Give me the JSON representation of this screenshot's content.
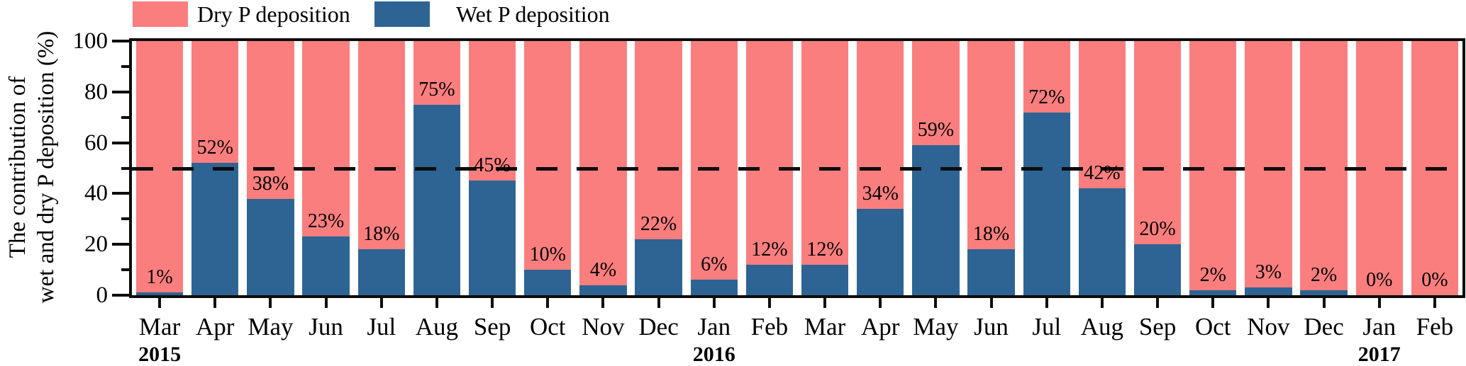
{
  "legend": [
    {
      "label": "Dry P deposition",
      "color": "#FB7E7E"
    },
    {
      "label": "Wet P deposition",
      "color": "#2E6494"
    }
  ],
  "chart_data": {
    "type": "bar",
    "stacked": true,
    "orientation": "vertical",
    "ylabel_line1": "The contribution of",
    "ylabel_line2": "wet and dry P deposition (%)",
    "ylim": [
      0,
      100
    ],
    "yticks_major": [
      0,
      20,
      40,
      60,
      80,
      100
    ],
    "yticks_minor": [
      10,
      30,
      50,
      70,
      90
    ],
    "reference_line_value": 50,
    "reference_line_style": "dashed",
    "grid": false,
    "legend_position": "top",
    "categories": [
      "Mar",
      "Apr",
      "May",
      "Jun",
      "Jul",
      "Aug",
      "Sep",
      "Oct",
      "Nov",
      "Dec",
      "Jan",
      "Feb",
      "Mar",
      "Apr",
      "May",
      "Jun",
      "Jul",
      "Aug",
      "Sep",
      "Oct",
      "Nov",
      "Dec",
      "Jan",
      "Feb"
    ],
    "year_markers": [
      {
        "label": "2015",
        "slot": 0
      },
      {
        "label": "2016",
        "slot": 10
      },
      {
        "label": "2017",
        "slot": 22
      }
    ],
    "series": [
      {
        "name": "Dry P deposition",
        "color": "#FB7E7E",
        "values": [
          99,
          48,
          62,
          77,
          82,
          25,
          55,
          90,
          96,
          78,
          94,
          88,
          88,
          66,
          41,
          82,
          28,
          58,
          80,
          98,
          97,
          98,
          100,
          100
        ]
      },
      {
        "name": "Wet P deposition",
        "color": "#2E6494",
        "values": [
          1,
          52,
          38,
          23,
          18,
          75,
          45,
          10,
          4,
          22,
          6,
          12,
          12,
          34,
          59,
          18,
          72,
          42,
          20,
          2,
          3,
          2,
          0,
          0
        ]
      }
    ],
    "bar_labels": [
      "1%",
      "52%",
      "38%",
      "23%",
      "18%",
      "75%",
      "45%",
      "10%",
      "4%",
      "22%",
      "6%",
      "12%",
      "12%",
      "34%",
      "59%",
      "18%",
      "72%",
      "42%",
      "20%",
      "2%",
      "3%",
      "2%",
      "0%",
      "0%"
    ],
    "axis_color": "#0d0d0d",
    "label_color": "#000000"
  }
}
